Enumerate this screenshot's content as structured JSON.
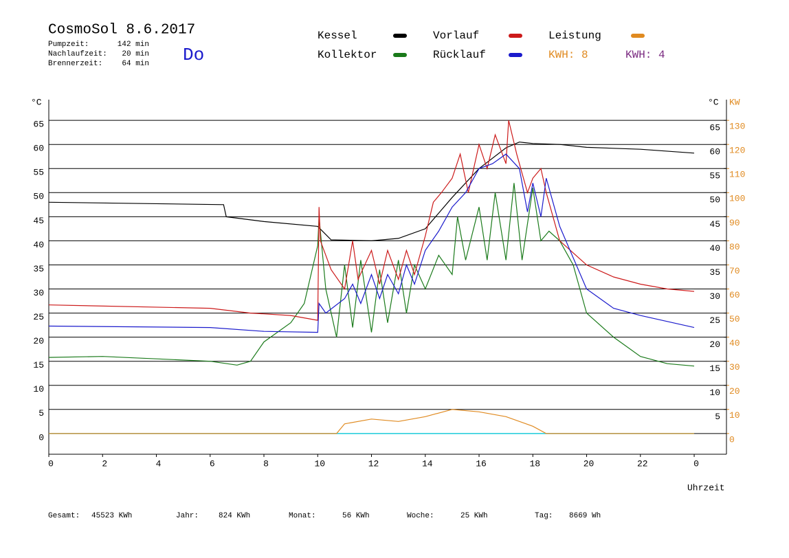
{
  "header": {
    "title": "CosmoSol 8.6.2017",
    "weekday": "Do",
    "stats": [
      {
        "label": "Pumpzeit:",
        "value": "142 min"
      },
      {
        "label": "Nachlaufzeit:",
        "value": "20 min"
      },
      {
        "label": "Brennerzeit:",
        "value": "64 min"
      }
    ]
  },
  "footer": [
    {
      "label": "Gesamt:",
      "value": "45523 KWh"
    },
    {
      "label": "Jahr:",
      "value": "824 KWh"
    },
    {
      "label": "Monat:",
      "value": "56 KWh"
    },
    {
      "label": "Woche:",
      "value": "25 KWh"
    },
    {
      "label": "Tag:",
      "value": "8669 Wh"
    }
  ],
  "chart_data": {
    "type": "line",
    "y_unit": "°C",
    "y2_unit_left": "°C",
    "y2_unit": "KW",
    "x_label": "Uhrzeit",
    "xlim": [
      0,
      25.2
    ],
    "xticks": [
      0,
      2,
      4,
      6,
      8,
      10,
      12,
      14,
      16,
      18,
      20,
      22,
      {
        "value": 24,
        "label": "0"
      }
    ],
    "ylim": [
      -4.3,
      69.3
    ],
    "yticks": [
      0,
      5,
      10,
      15,
      20,
      25,
      30,
      35,
      40,
      45,
      50,
      55,
      60,
      65
    ],
    "yticks_right": [
      5,
      10,
      15,
      20,
      25,
      30,
      35,
      40,
      45,
      50,
      55,
      60,
      65
    ],
    "y2lim": [
      -8.6,
      138.6
    ],
    "y2ticks": [
      0,
      10,
      20,
      30,
      40,
      50,
      60,
      70,
      80,
      90,
      100,
      110,
      120,
      130
    ],
    "grid": true,
    "extra_legend": [
      {
        "label": "KWH: 8",
        "color": "#e08a20"
      },
      {
        "label": "KWH: 4",
        "color": "#7a2a80"
      }
    ],
    "series": [
      {
        "name": "Kessel",
        "color": "#000000",
        "x": [
          0,
          6.5,
          6.6,
          8,
          10,
          10.5,
          12,
          13,
          14,
          15,
          16,
          17,
          17.5,
          18,
          19,
          20,
          22,
          24
        ],
        "values": [
          48,
          47.5,
          45,
          44,
          43,
          40.2,
          40,
          40.5,
          42.5,
          49,
          55,
          59.3,
          60.5,
          60.2,
          60,
          59.4,
          59,
          58.2
        ]
      },
      {
        "name": "Kollektor",
        "color": "#1a7a1a",
        "x": [
          0,
          2,
          4,
          6,
          7,
          7.5,
          8,
          9,
          9.5,
          10,
          10.05,
          10.3,
          10.7,
          11,
          11.3,
          11.6,
          12,
          12.3,
          12.6,
          13,
          13.3,
          13.6,
          14,
          14.5,
          15,
          15.2,
          15.5,
          16,
          16.3,
          16.6,
          17,
          17.3,
          17.6,
          18,
          18.3,
          18.6,
          19,
          19.5,
          20,
          21,
          22,
          23,
          24
        ],
        "values": [
          15.8,
          16,
          15.5,
          15,
          14.2,
          15,
          19,
          23,
          27,
          39,
          45,
          30,
          20,
          35,
          22,
          36,
          21,
          34,
          23,
          36,
          25,
          35,
          30,
          37,
          33,
          45,
          36,
          47,
          36,
          50,
          36,
          52,
          36,
          51,
          40,
          42,
          40,
          35,
          25,
          20,
          16,
          14.5,
          14
        ]
      },
      {
        "name": "Vorlauf",
        "color": "#cc1a1a",
        "x": [
          0,
          6,
          7.5,
          9,
          10,
          10.05,
          10.1,
          10.5,
          11,
          11.3,
          11.5,
          12,
          12.3,
          12.6,
          13,
          13.3,
          13.6,
          14,
          14.3,
          14.6,
          15,
          15.3,
          15.6,
          16,
          16.3,
          16.6,
          17,
          17.1,
          17.4,
          17.8,
          18,
          18.3,
          18.5,
          19,
          20,
          21,
          22,
          23,
          24
        ],
        "values": [
          26.7,
          26,
          25,
          24.5,
          23.5,
          47,
          40,
          34,
          30,
          40,
          32,
          38,
          31,
          38,
          32,
          38,
          33,
          41,
          48,
          50,
          53,
          58,
          50,
          60,
          55,
          62,
          56,
          65,
          58,
          50,
          53,
          55,
          50,
          40,
          35,
          32.5,
          31,
          30,
          29.5
        ]
      },
      {
        "name": "Rücklauf",
        "color": "#1a1acc",
        "x": [
          0,
          6,
          8,
          10,
          10.05,
          10.3,
          11,
          11.3,
          11.6,
          12,
          12.3,
          12.6,
          13,
          13.3,
          13.6,
          14,
          14.5,
          15,
          15.5,
          16,
          16.5,
          17,
          17.5,
          17.8,
          18,
          18.3,
          18.5,
          19,
          20,
          21,
          22,
          24
        ],
        "values": [
          22.3,
          22,
          21.2,
          21,
          27,
          25,
          28,
          31,
          27,
          33,
          28,
          33,
          29,
          35,
          31,
          38,
          42,
          47,
          50,
          55,
          56,
          58,
          55,
          46,
          52,
          45,
          53,
          43,
          30,
          26,
          24.5,
          22
        ]
      },
      {
        "name": "Leistung",
        "color": "#e08a20",
        "axis": "y2",
        "x": [
          0,
          10,
          10.7,
          11,
          12,
          13,
          14,
          15,
          16,
          17,
          18,
          18.5,
          24
        ],
        "values": [
          0,
          0,
          0,
          4,
          6,
          5,
          7,
          10,
          9,
          7,
          3,
          0,
          0
        ]
      }
    ]
  }
}
